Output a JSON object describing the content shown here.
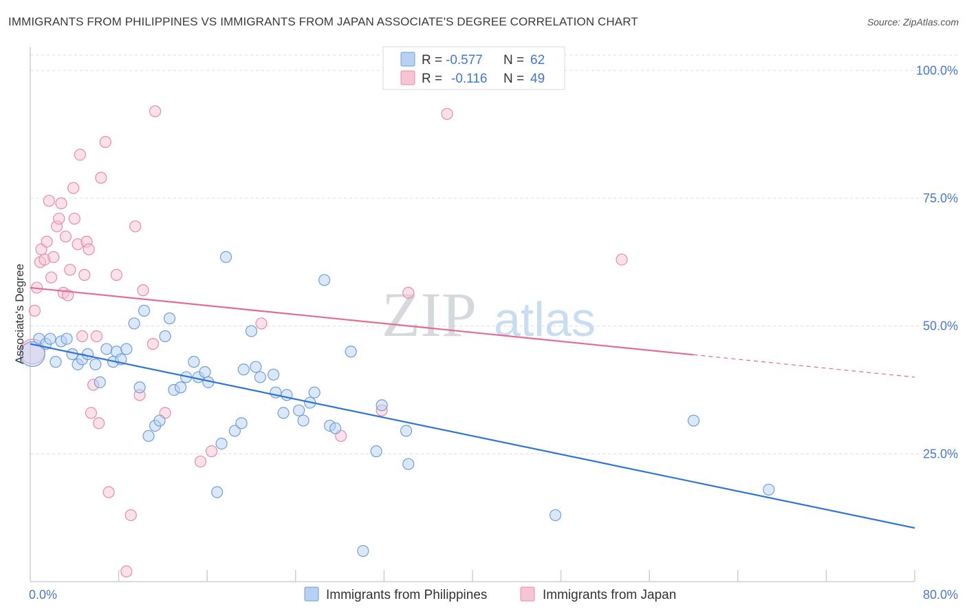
{
  "title": "IMMIGRANTS FROM PHILIPPINES VS IMMIGRANTS FROM JAPAN ASSOCIATE'S DEGREE CORRELATION CHART",
  "source": "Source: ZipAtlas.com",
  "watermark": {
    "zip": "ZIP",
    "atlas": "atlas"
  },
  "colors": {
    "blue_fill": "#b8d1f3",
    "blue_stroke": "#6f9fd8",
    "blue_line": "#2d74d6",
    "pink_fill": "#f7c4d3",
    "pink_stroke": "#e98aa8",
    "pink_line": "#e36b93",
    "grid": "#dcdcdc",
    "tick_text": "#4a7ac7"
  },
  "legend": {
    "rows": [
      {
        "r_label": "R =",
        "r_value": "-0.577",
        "n_label": "N =",
        "n_value": "62"
      },
      {
        "r_label": "R =",
        "r_value": "-0.116",
        "n_label": "N =",
        "n_value": "49"
      }
    ]
  },
  "chart_data": {
    "type": "scatter",
    "title": "IMMIGRANTS FROM PHILIPPINES VS IMMIGRANTS FROM JAPAN ASSOCIATE'S DEGREE CORRELATION CHART",
    "xlabel": "",
    "ylabel": "Associate's Degree",
    "xlim": [
      0,
      80
    ],
    "ylim": [
      0,
      103
    ],
    "x_tick_labels": [
      "0.0%",
      "80.0%"
    ],
    "y_ticks": [
      25,
      50,
      75,
      100
    ],
    "y_tick_labels": [
      "25.0%",
      "50.0%",
      "75.0%",
      "100.0%"
    ],
    "legend_position": "bottom",
    "series": [
      {
        "name": "Immigrants from Philippines",
        "color": "#b8d1f3",
        "trend": {
          "x": [
            0,
            80
          ],
          "y": [
            46.5,
            10.5
          ],
          "dashed_from": null
        },
        "points": [
          {
            "x": 0.2,
            "y": 44.5,
            "big": true
          },
          {
            "x": 0.8,
            "y": 47.5
          },
          {
            "x": 1.4,
            "y": 46.5
          },
          {
            "x": 1.8,
            "y": 47.5
          },
          {
            "x": 2.3,
            "y": 43.0
          },
          {
            "x": 2.8,
            "y": 47.0
          },
          {
            "x": 3.3,
            "y": 47.5
          },
          {
            "x": 3.8,
            "y": 44.5
          },
          {
            "x": 4.3,
            "y": 42.5
          },
          {
            "x": 4.7,
            "y": 43.5
          },
          {
            "x": 5.2,
            "y": 44.5
          },
          {
            "x": 5.9,
            "y": 42.5
          },
          {
            "x": 6.3,
            "y": 39.0
          },
          {
            "x": 6.9,
            "y": 45.5
          },
          {
            "x": 7.5,
            "y": 43.0
          },
          {
            "x": 7.8,
            "y": 45.0
          },
          {
            "x": 8.2,
            "y": 43.5
          },
          {
            "x": 8.7,
            "y": 45.5
          },
          {
            "x": 9.4,
            "y": 50.5
          },
          {
            "x": 9.9,
            "y": 38.0
          },
          {
            "x": 10.3,
            "y": 53.0
          },
          {
            "x": 10.7,
            "y": 28.5
          },
          {
            "x": 11.3,
            "y": 30.5
          },
          {
            "x": 11.7,
            "y": 31.5
          },
          {
            "x": 12.2,
            "y": 48.0
          },
          {
            "x": 12.6,
            "y": 51.5
          },
          {
            "x": 13.0,
            "y": 37.5
          },
          {
            "x": 13.6,
            "y": 38.0
          },
          {
            "x": 14.1,
            "y": 40.0
          },
          {
            "x": 14.8,
            "y": 43.0
          },
          {
            "x": 15.2,
            "y": 40.0
          },
          {
            "x": 15.8,
            "y": 41.0
          },
          {
            "x": 16.1,
            "y": 39.0
          },
          {
            "x": 16.9,
            "y": 17.5
          },
          {
            "x": 17.3,
            "y": 27.0
          },
          {
            "x": 17.7,
            "y": 63.5
          },
          {
            "x": 18.5,
            "y": 29.5
          },
          {
            "x": 19.1,
            "y": 31.0
          },
          {
            "x": 19.3,
            "y": 41.5
          },
          {
            "x": 20.0,
            "y": 49.0
          },
          {
            "x": 20.4,
            "y": 42.0
          },
          {
            "x": 20.8,
            "y": 40.0
          },
          {
            "x": 22.0,
            "y": 40.5
          },
          {
            "x": 22.2,
            "y": 37.0
          },
          {
            "x": 22.9,
            "y": 33.0
          },
          {
            "x": 23.2,
            "y": 36.5
          },
          {
            "x": 24.3,
            "y": 33.5
          },
          {
            "x": 24.7,
            "y": 31.5
          },
          {
            "x": 25.3,
            "y": 35.0
          },
          {
            "x": 25.7,
            "y": 37.0
          },
          {
            "x": 26.6,
            "y": 59.0
          },
          {
            "x": 27.1,
            "y": 30.5
          },
          {
            "x": 27.6,
            "y": 30.0
          },
          {
            "x": 29.0,
            "y": 45.0
          },
          {
            "x": 30.1,
            "y": 6.0
          },
          {
            "x": 31.3,
            "y": 25.5
          },
          {
            "x": 31.8,
            "y": 34.5
          },
          {
            "x": 34.0,
            "y": 29.5
          },
          {
            "x": 34.2,
            "y": 23.0
          },
          {
            "x": 47.5,
            "y": 13.0
          },
          {
            "x": 60.0,
            "y": 31.5
          },
          {
            "x": 66.8,
            "y": 18.0
          }
        ]
      },
      {
        "name": "Immigrants from Japan",
        "color": "#f7c4d3",
        "trend": {
          "x": [
            0,
            80
          ],
          "y": [
            57.5,
            40.0
          ],
          "dashed_from": 60
        },
        "points": [
          {
            "x": 0.2,
            "y": 45.0,
            "big": true
          },
          {
            "x": 0.4,
            "y": 53.0
          },
          {
            "x": 0.6,
            "y": 57.5
          },
          {
            "x": 0.9,
            "y": 62.5
          },
          {
            "x": 1.0,
            "y": 65.0
          },
          {
            "x": 1.3,
            "y": 63.0
          },
          {
            "x": 1.5,
            "y": 66.5
          },
          {
            "x": 1.7,
            "y": 74.5
          },
          {
            "x": 1.9,
            "y": 59.5
          },
          {
            "x": 2.1,
            "y": 63.5
          },
          {
            "x": 2.4,
            "y": 69.5
          },
          {
            "x": 2.6,
            "y": 71.0
          },
          {
            "x": 2.8,
            "y": 74.0
          },
          {
            "x": 3.0,
            "y": 56.5
          },
          {
            "x": 3.2,
            "y": 67.5
          },
          {
            "x": 3.4,
            "y": 56.0
          },
          {
            "x": 3.6,
            "y": 61.0
          },
          {
            "x": 3.9,
            "y": 77.0
          },
          {
            "x": 4.0,
            "y": 71.0
          },
          {
            "x": 4.3,
            "y": 66.0
          },
          {
            "x": 4.5,
            "y": 83.5
          },
          {
            "x": 4.7,
            "y": 48.0
          },
          {
            "x": 4.9,
            "y": 60.0
          },
          {
            "x": 5.1,
            "y": 66.5
          },
          {
            "x": 5.3,
            "y": 65.0
          },
          {
            "x": 5.5,
            "y": 33.0
          },
          {
            "x": 5.7,
            "y": 38.5
          },
          {
            "x": 6.0,
            "y": 48.0
          },
          {
            "x": 6.2,
            "y": 31.0
          },
          {
            "x": 6.4,
            "y": 79.0
          },
          {
            "x": 6.8,
            "y": 86.0
          },
          {
            "x": 7.1,
            "y": 17.5
          },
          {
            "x": 7.8,
            "y": 60.0
          },
          {
            "x": 8.7,
            "y": 2.0
          },
          {
            "x": 9.1,
            "y": 13.0
          },
          {
            "x": 9.5,
            "y": 69.5
          },
          {
            "x": 9.9,
            "y": 36.5
          },
          {
            "x": 10.2,
            "y": 57.0
          },
          {
            "x": 11.1,
            "y": 46.5
          },
          {
            "x": 11.3,
            "y": 92.0
          },
          {
            "x": 12.2,
            "y": 33.0
          },
          {
            "x": 15.4,
            "y": 23.5
          },
          {
            "x": 16.4,
            "y": 25.5
          },
          {
            "x": 20.9,
            "y": 50.5
          },
          {
            "x": 28.1,
            "y": 28.5
          },
          {
            "x": 31.8,
            "y": 33.5
          },
          {
            "x": 34.2,
            "y": 56.5
          },
          {
            "x": 37.7,
            "y": 91.5
          },
          {
            "x": 53.5,
            "y": 63.0
          }
        ]
      }
    ]
  }
}
